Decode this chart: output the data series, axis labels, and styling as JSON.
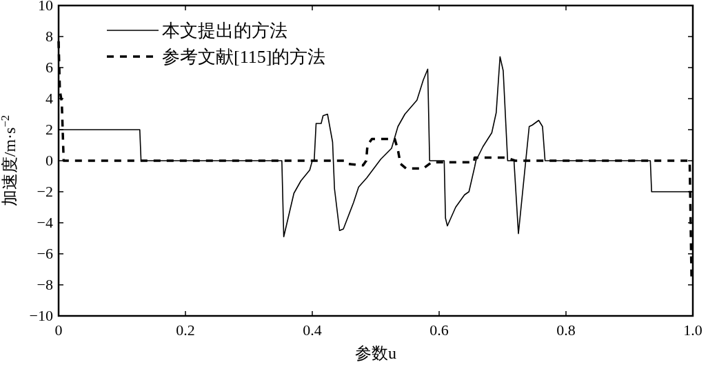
{
  "chart_data": {
    "type": "line",
    "xlabel": "参数u",
    "ylabel": "加速度/m·s$^{−2}$",
    "xlim": [
      0,
      1
    ],
    "ylim": [
      -10,
      10
    ],
    "xticks": [
      0,
      0.2,
      0.4,
      0.6,
      0.8,
      {
        "value": 1,
        "label": "1.0"
      }
    ],
    "yticks": [
      {
        "value": -10,
        "label": "−10"
      },
      {
        "value": -8,
        "label": "−8"
      },
      {
        "value": -6,
        "label": "−6"
      },
      {
        "value": -4,
        "label": "−4"
      },
      {
        "value": -2,
        "label": "−2"
      },
      0,
      2,
      4,
      6,
      8,
      10
    ],
    "grid": false,
    "legend": "top left",
    "series": [
      {
        "name": "本文提出的方法",
        "color": "#000000",
        "line_style": "solid",
        "x": [
          0,
          0.128,
          0.13,
          0.352,
          0.355,
          0.371,
          0.382,
          0.396,
          0.4,
          0.403,
          0.406,
          0.414,
          0.417,
          0.424,
          0.432,
          0.435,
          0.443,
          0.449,
          0.465,
          0.473,
          0.486,
          0.508,
          0.525,
          0.535,
          0.546,
          0.565,
          0.575,
          0.582,
          0.585,
          0.608,
          0.61,
          0.613,
          0.626,
          0.64,
          0.647,
          0.656,
          0.658,
          0.669,
          0.683,
          0.69,
          0.696,
          0.701,
          0.708,
          0.718,
          0.725,
          0.742,
          0.747,
          0.757,
          0.763,
          0.767,
          0.933,
          0.935,
          1.0
        ],
        "values": [
          2,
          2,
          0,
          0,
          -4.9,
          -2.1,
          -1.3,
          -0.6,
          0,
          0,
          2.4,
          2.4,
          2.9,
          3.0,
          1.2,
          -1.8,
          -4.5,
          -4.4,
          -2.7,
          -1.7,
          -1.1,
          0.1,
          0.8,
          2.2,
          3.0,
          3.9,
          5.2,
          5.9,
          0,
          0,
          -3.7,
          -4.2,
          -3.0,
          -2.2,
          -2.0,
          -0.4,
          0,
          0.9,
          1.8,
          3.1,
          6.7,
          5.8,
          0,
          0,
          -4.7,
          2.2,
          2.3,
          2.6,
          2.2,
          0,
          0,
          -2.0,
          -2.0
        ]
      },
      {
        "name": "参考文献[115]的方法",
        "color": "#000000",
        "line_style": "dashed",
        "x": [
          0,
          0.002,
          0.005,
          0.008,
          0.45,
          0.455,
          0.48,
          0.485,
          0.487,
          0.494,
          0.53,
          0.535,
          0.539,
          0.548,
          0.575,
          0.588,
          0.655,
          0.656,
          0.705,
          0.72,
          0.995,
          0.998
        ],
        "values": [
          7.7,
          4.5,
          3.8,
          0,
          0,
          -0.2,
          -0.3,
          0,
          1.0,
          1.4,
          1.4,
          0.7,
          -0.2,
          -0.5,
          -0.5,
          -0.1,
          -0.1,
          0.2,
          0.2,
          0,
          0,
          -7.7
        ]
      }
    ]
  }
}
